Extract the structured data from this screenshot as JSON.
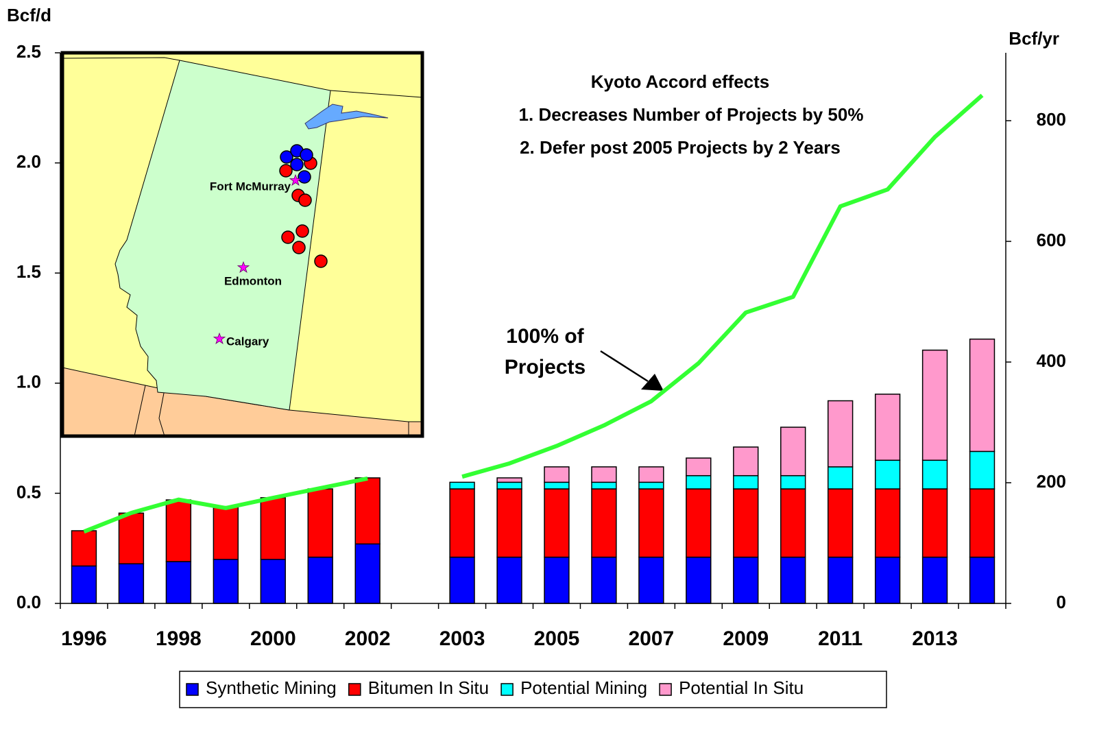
{
  "chart_data": {
    "type": "bar",
    "stacked": true,
    "y_label": "Bcf/d",
    "y2_label": "Bcf/yr",
    "categories": [
      "1996",
      null,
      "1998",
      null,
      "2000",
      null,
      "2002",
      null,
      "2003",
      null,
      "2005",
      null,
      "2007",
      null,
      "2009",
      null,
      "2011",
      null,
      "2013",
      null
    ],
    "series": [
      {
        "name": "Synthetic Mining",
        "color": "#0000ff",
        "values": [
          0.17,
          0.18,
          0.19,
          0.2,
          0.2,
          0.21,
          0.27,
          null,
          0.21,
          0.21,
          0.21,
          0.21,
          0.21,
          0.21,
          0.21,
          0.21,
          0.21,
          0.21,
          0.21,
          0.21
        ]
      },
      {
        "name": "Bitumen In Situ",
        "color": "#ff0000",
        "values": [
          0.16,
          0.23,
          0.28,
          0.24,
          0.28,
          0.31,
          0.3,
          null,
          0.31,
          0.31,
          0.31,
          0.31,
          0.31,
          0.31,
          0.31,
          0.31,
          0.31,
          0.31,
          0.31,
          0.31
        ]
      },
      {
        "name": "Potential Mining",
        "color": "#00ffff",
        "values": [
          null,
          null,
          null,
          null,
          null,
          null,
          null,
          null,
          0.03,
          0.03,
          0.03,
          0.03,
          0.03,
          0.06,
          0.06,
          0.06,
          0.1,
          0.13,
          0.13,
          0.17
        ]
      },
      {
        "name": "Potential In Situ",
        "color": "#ff99cc",
        "values": [
          null,
          null,
          null,
          null,
          null,
          null,
          null,
          null,
          null,
          0.02,
          0.07,
          0.07,
          0.07,
          0.08,
          0.13,
          0.22,
          0.3,
          0.3,
          0.5,
          0.51
        ]
      },
      {
        "type": "line",
        "axis": "y2",
        "color": "#33ff33",
        "values": [
          119,
          150,
          172,
          158,
          175,
          191,
          207,
          null,
          210,
          232,
          261,
          295,
          335,
          398,
          482,
          508,
          658,
          686,
          773,
          842
        ]
      }
    ],
    "ylim": [
      0,
      2.5
    ],
    "yticks": [
      {
        "value": 0,
        "label": "0.0"
      },
      0.5,
      {
        "value": 1,
        "label": "1.0"
      },
      1.5,
      {
        "value": 2,
        "label": "2.0"
      },
      2.5
    ],
    "y2lim": [
      0,
      912.5
    ],
    "y2ticks": [
      0,
      200,
      400,
      600,
      800
    ],
    "annotations": [
      "Kyoto Accord effects",
      "1. Decreases Number of Projects by 50%",
      "2. Defer post 2005 Projects by 2 Years",
      "100% of",
      "Projects"
    ],
    "map_labels": [
      "Fort McMurray",
      "Edmonton",
      "Calgary"
    ]
  }
}
